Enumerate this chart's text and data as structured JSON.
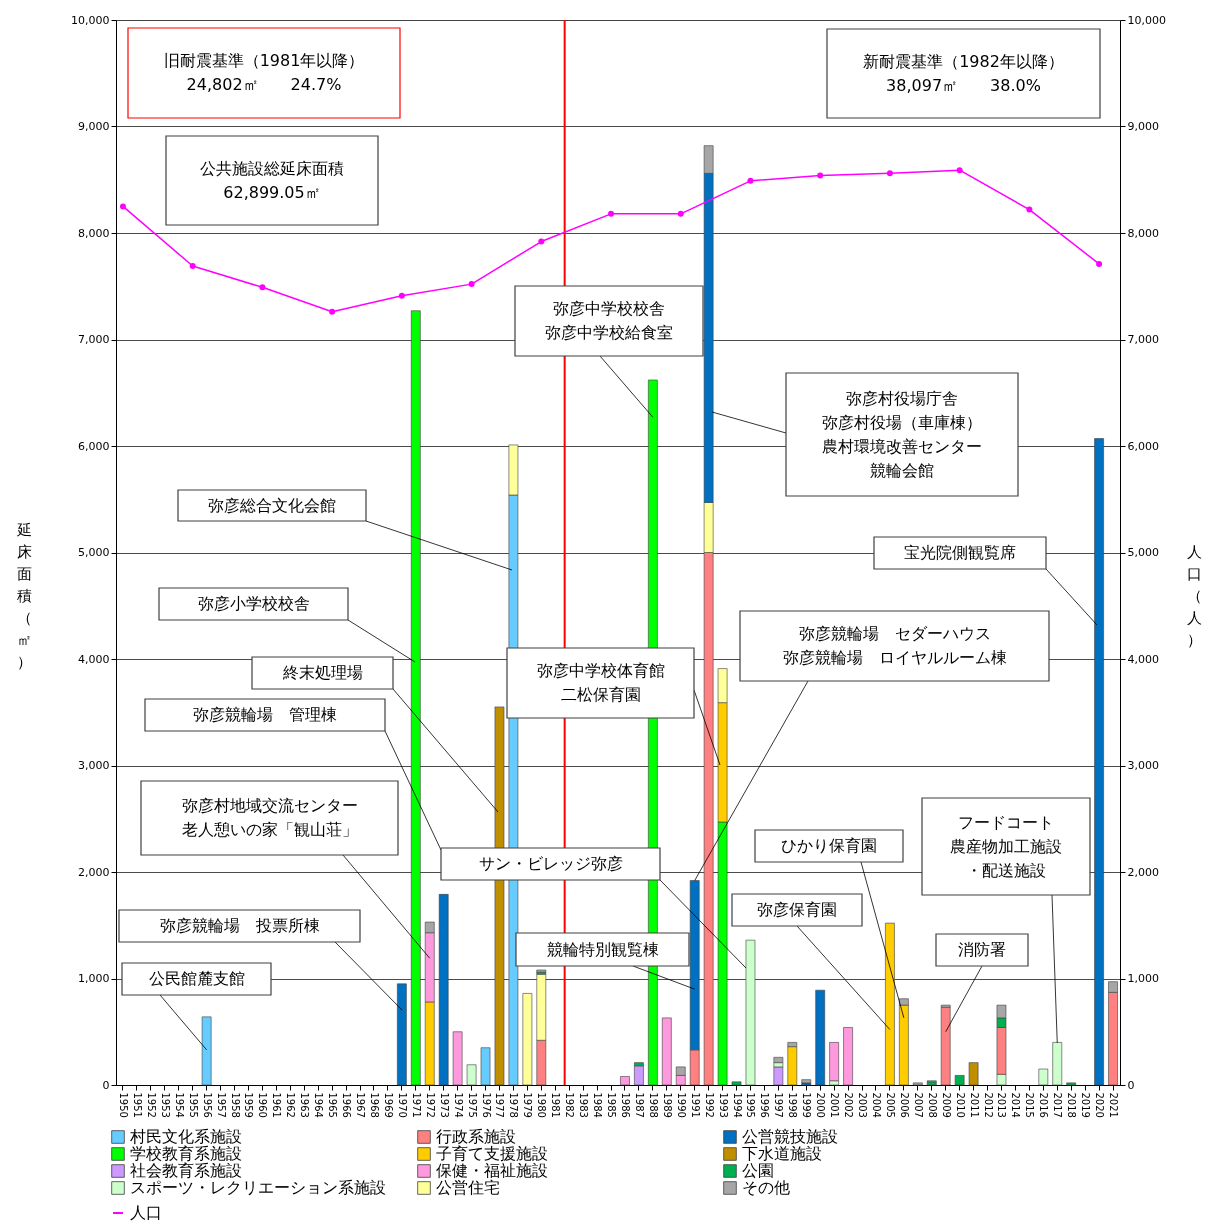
{
  "chart_data": {
    "type": "bar",
    "stacked": true,
    "categories": [
      "1950",
      "1951",
      "1952",
      "1953",
      "1954",
      "1955",
      "1956",
      "1957",
      "1958",
      "1959",
      "1960",
      "1961",
      "1962",
      "1963",
      "1964",
      "1965",
      "1966",
      "1967",
      "1968",
      "1969",
      "1970",
      "1971",
      "1972",
      "1973",
      "1974",
      "1975",
      "1976",
      "1977",
      "1978",
      "1979",
      "1980",
      "1981",
      "1982",
      "1983",
      "1984",
      "1985",
      "1986",
      "1987",
      "1988",
      "1989",
      "1990",
      "1991",
      "1992",
      "1993",
      "1994",
      "1995",
      "1996",
      "1997",
      "1998",
      "1999",
      "2000",
      "2001",
      "2002",
      "2003",
      "2004",
      "2005",
      "2006",
      "2007",
      "2008",
      "2009",
      "2010",
      "2011",
      "2012",
      "2013",
      "2014",
      "2015",
      "2016",
      "2017",
      "2018",
      "2019",
      "2020",
      "2021"
    ],
    "ylabel": "延床面積（㎡）",
    "y2label": "人口（人）",
    "ylim": [
      0,
      10000
    ],
    "yticks": [
      0,
      {
        "value": 1000,
        "label": "1,000"
      },
      {
        "value": 2000,
        "label": "2,000"
      },
      {
        "value": 3000,
        "label": "3,000"
      },
      {
        "value": 4000,
        "label": "4,000"
      },
      {
        "value": 5000,
        "label": "5,000"
      },
      {
        "value": 6000,
        "label": "6,000"
      },
      {
        "value": 7000,
        "label": "7,000"
      },
      {
        "value": 8000,
        "label": "8,000"
      },
      {
        "value": 9000,
        "label": "9,000"
      },
      {
        "value": 10000,
        "label": "10,000"
      }
    ],
    "y2lim": [
      0,
      10000
    ],
    "y2ticks": [
      0,
      {
        "value": 1000,
        "label": "1,000"
      },
      {
        "value": 2000,
        "label": "2,000"
      },
      {
        "value": 3000,
        "label": "3,000"
      },
      {
        "value": 4000,
        "label": "4,000"
      },
      {
        "value": 5000,
        "label": "5,000"
      },
      {
        "value": 6000,
        "label": "6,000"
      },
      {
        "value": 7000,
        "label": "7,000"
      },
      {
        "value": 8000,
        "label": "8,000"
      },
      {
        "value": 9000,
        "label": "9,000"
      },
      {
        "value": 10000,
        "label": "10,000"
      }
    ],
    "grid": "y",
    "legend": "bottom",
    "series": [
      {
        "name": "村民文化系施設",
        "color": "#66ccff",
        "values": [
          null,
          null,
          null,
          null,
          null,
          null,
          640,
          null,
          null,
          null,
          null,
          null,
          null,
          null,
          null,
          null,
          null,
          null,
          null,
          null,
          null,
          null,
          null,
          null,
          null,
          null,
          350,
          null,
          5540,
          null,
          null,
          null,
          null,
          null,
          null,
          null,
          null,
          null,
          null,
          null,
          null,
          null,
          null,
          null,
          null,
          null,
          null,
          null,
          null,
          null,
          null,
          null,
          null,
          null,
          null,
          null,
          null,
          null,
          null,
          null,
          null,
          null,
          null,
          null,
          null,
          null,
          null,
          null,
          null,
          null,
          null,
          null
        ]
      },
      {
        "name": "学校教育系施設",
        "color": "#00ff00",
        "values": [
          null,
          null,
          null,
          null,
          null,
          null,
          null,
          null,
          null,
          null,
          null,
          null,
          null,
          null,
          null,
          null,
          null,
          null,
          null,
          null,
          null,
          7270,
          null,
          null,
          null,
          null,
          null,
          null,
          null,
          null,
          null,
          null,
          null,
          null,
          null,
          null,
          null,
          null,
          6620,
          null,
          null,
          null,
          null,
          2470,
          null,
          null,
          null,
          null,
          null,
          null,
          null,
          null,
          null,
          null,
          null,
          null,
          null,
          null,
          null,
          null,
          null,
          null,
          null,
          null,
          null,
          null,
          null,
          null,
          null,
          null,
          null,
          null
        ]
      },
      {
        "name": "社会教育系施設",
        "color": "#cc99ff",
        "values": [
          null,
          null,
          null,
          null,
          null,
          null,
          null,
          null,
          null,
          null,
          null,
          null,
          null,
          null,
          null,
          null,
          null,
          null,
          null,
          null,
          null,
          null,
          null,
          null,
          null,
          null,
          null,
          null,
          null,
          null,
          null,
          null,
          null,
          null,
          null,
          null,
          null,
          180,
          null,
          null,
          null,
          null,
          null,
          null,
          null,
          null,
          null,
          170,
          null,
          null,
          null,
          null,
          null,
          null,
          null,
          null,
          null,
          null,
          null,
          null,
          null,
          null,
          null,
          null,
          null,
          null,
          null,
          null,
          null,
          null,
          null,
          null
        ]
      },
      {
        "name": "スポーツ・レクリエーション系施設",
        "color": "#ccffcc",
        "values": [
          null,
          null,
          null,
          null,
          null,
          null,
          null,
          null,
          null,
          null,
          null,
          null,
          null,
          null,
          null,
          null,
          null,
          null,
          null,
          null,
          null,
          null,
          null,
          null,
          null,
          190,
          null,
          null,
          null,
          null,
          null,
          null,
          null,
          null,
          null,
          null,
          null,
          null,
          null,
          null,
          null,
          null,
          null,
          null,
          null,
          1360,
          null,
          40,
          null,
          null,
          null,
          40,
          null,
          null,
          null,
          null,
          null,
          null,
          null,
          null,
          null,
          null,
          null,
          100,
          null,
          null,
          150,
          400,
          null,
          null,
          null,
          null
        ]
      },
      {
        "name": "行政系施設",
        "color": "#ff8080",
        "values": [
          null,
          null,
          null,
          null,
          null,
          null,
          null,
          null,
          null,
          null,
          null,
          null,
          null,
          null,
          null,
          null,
          null,
          null,
          null,
          null,
          null,
          null,
          null,
          null,
          null,
          null,
          null,
          null,
          null,
          null,
          420,
          null,
          null,
          null,
          null,
          null,
          null,
          null,
          null,
          null,
          null,
          330,
          5000,
          null,
          null,
          null,
          null,
          null,
          null,
          null,
          null,
          null,
          null,
          null,
          null,
          null,
          null,
          null,
          null,
          730,
          null,
          null,
          null,
          440,
          null,
          null,
          null,
          null,
          null,
          null,
          null,
          870
        ]
      },
      {
        "name": "子育て支援施設",
        "color": "#ffcc00",
        "values": [
          null,
          null,
          null,
          null,
          null,
          null,
          null,
          null,
          null,
          null,
          null,
          null,
          null,
          null,
          null,
          null,
          null,
          null,
          null,
          null,
          null,
          null,
          780,
          null,
          null,
          null,
          null,
          null,
          null,
          null,
          null,
          null,
          null,
          null,
          null,
          null,
          null,
          null,
          null,
          null,
          null,
          null,
          null,
          1120,
          null,
          null,
          null,
          null,
          360,
          null,
          null,
          null,
          null,
          null,
          null,
          1520,
          750,
          null,
          null,
          null,
          null,
          null,
          null,
          null,
          null,
          null,
          null,
          null,
          null,
          null,
          null,
          null
        ]
      },
      {
        "name": "保健・福祉施設",
        "color": "#ff99dd",
        "values": [
          null,
          null,
          null,
          null,
          null,
          null,
          null,
          null,
          null,
          null,
          null,
          null,
          null,
          null,
          null,
          null,
          null,
          null,
          null,
          null,
          null,
          null,
          650,
          null,
          500,
          null,
          null,
          null,
          null,
          null,
          null,
          null,
          null,
          null,
          null,
          null,
          80,
          null,
          null,
          630,
          90,
          null,
          null,
          null,
          null,
          null,
          null,
          null,
          null,
          null,
          null,
          360,
          540,
          null,
          null,
          null,
          null,
          null,
          null,
          null,
          null,
          null,
          null,
          null,
          null,
          null,
          null,
          null,
          null,
          null,
          null,
          null
        ]
      },
      {
        "name": "公営住宅",
        "color": "#ffff99",
        "values": [
          null,
          null,
          null,
          null,
          null,
          null,
          null,
          null,
          null,
          null,
          null,
          null,
          null,
          null,
          null,
          null,
          null,
          null,
          null,
          null,
          null,
          null,
          null,
          null,
          null,
          null,
          null,
          null,
          470,
          860,
          620,
          null,
          null,
          null,
          null,
          null,
          null,
          null,
          null,
          null,
          null,
          null,
          470,
          320,
          null,
          null,
          null,
          null,
          null,
          null,
          null,
          null,
          null,
          null,
          null,
          null,
          null,
          null,
          null,
          null,
          null,
          null,
          null,
          null,
          null,
          null,
          null,
          null,
          null,
          null,
          null,
          null
        ]
      },
      {
        "name": "公営競技施設",
        "color": "#0070c0",
        "values": [
          null,
          null,
          null,
          null,
          null,
          null,
          null,
          null,
          null,
          null,
          null,
          null,
          null,
          null,
          null,
          null,
          null,
          null,
          null,
          null,
          950,
          null,
          null,
          1790,
          null,
          null,
          null,
          null,
          null,
          null,
          null,
          null,
          null,
          null,
          null,
          null,
          null,
          null,
          null,
          null,
          null,
          1590,
          3090,
          null,
          null,
          null,
          null,
          null,
          null,
          20,
          890,
          null,
          null,
          null,
          null,
          null,
          null,
          null,
          null,
          null,
          null,
          null,
          null,
          null,
          null,
          null,
          null,
          null,
          null,
          null,
          6070,
          null
        ]
      },
      {
        "name": "下水道施設",
        "color": "#bf8f00",
        "values": [
          null,
          null,
          null,
          null,
          null,
          null,
          null,
          null,
          null,
          null,
          null,
          null,
          null,
          null,
          null,
          null,
          null,
          null,
          null,
          null,
          null,
          null,
          null,
          null,
          null,
          null,
          null,
          3550,
          null,
          null,
          null,
          null,
          null,
          null,
          null,
          null,
          null,
          null,
          null,
          null,
          null,
          null,
          null,
          null,
          null,
          null,
          null,
          null,
          null,
          null,
          null,
          null,
          null,
          null,
          null,
          null,
          null,
          null,
          null,
          null,
          null,
          210,
          null,
          null,
          null,
          null,
          null,
          null,
          null,
          null,
          null,
          null
        ]
      },
      {
        "name": "公園",
        "color": "#00b050",
        "values": [
          null,
          null,
          null,
          null,
          null,
          null,
          null,
          null,
          null,
          null,
          null,
          null,
          null,
          null,
          null,
          null,
          null,
          null,
          null,
          null,
          null,
          null,
          null,
          null,
          null,
          null,
          null,
          null,
          null,
          null,
          20,
          null,
          null,
          null,
          null,
          null,
          null,
          30,
          null,
          null,
          null,
          null,
          null,
          null,
          30,
          null,
          null,
          null,
          null,
          null,
          null,
          null,
          null,
          null,
          null,
          null,
          null,
          null,
          30,
          null,
          90,
          null,
          null,
          90,
          null,
          null,
          null,
          null,
          20,
          null,
          null,
          null
        ]
      },
      {
        "name": "その他",
        "color": "#a6a6a6",
        "values": [
          null,
          null,
          null,
          null,
          null,
          null,
          null,
          null,
          null,
          null,
          null,
          null,
          null,
          null,
          null,
          null,
          null,
          null,
          null,
          null,
          null,
          null,
          100,
          null,
          null,
          null,
          null,
          null,
          null,
          null,
          20,
          null,
          null,
          null,
          null,
          null,
          null,
          null,
          null,
          null,
          80,
          null,
          260,
          null,
          null,
          null,
          null,
          50,
          40,
          30,
          null,
          null,
          null,
          null,
          null,
          null,
          60,
          20,
          10,
          20,
          null,
          null,
          null,
          120,
          null,
          null,
          null,
          null,
          null,
          null,
          null,
          100
        ]
      },
      {
        "name": "人口",
        "type": "line",
        "axis": "y2",
        "marker": "circle",
        "color": "#ff00ff",
        "values": [
          8250,
          null,
          null,
          null,
          null,
          7690,
          null,
          null,
          null,
          null,
          7490,
          null,
          null,
          null,
          null,
          7260,
          null,
          null,
          null,
          null,
          7410,
          null,
          null,
          null,
          null,
          7520,
          null,
          null,
          null,
          null,
          7920,
          null,
          null,
          null,
          null,
          8180,
          null,
          null,
          null,
          null,
          8180,
          null,
          null,
          null,
          null,
          8490,
          null,
          null,
          null,
          null,
          8540,
          null,
          null,
          null,
          null,
          8560,
          null,
          null,
          null,
          null,
          8590,
          null,
          null,
          null,
          null,
          8220,
          null,
          null,
          null,
          null,
          7710,
          null
        ]
      }
    ],
    "ref_lines": [
      {
        "axis": "x",
        "value": "1982",
        "color": "#ff0000"
      }
    ],
    "annotations": [
      "旧耐震基準（1981年以降）",
      "24,802㎡　　24.7%",
      "新耐震基準（1982年以降）",
      "38,097㎡　　38.0%",
      "公共施設総延床面積",
      "62,899.05㎡",
      "弥彦中学校校舎",
      {
        "text": "弥彦中学校給食室",
        "x": "1988",
        "y": 6270
      },
      "弥彦村役場庁舎",
      "弥彦村役場（車庫棟）",
      "農村環境改善センター",
      "競輪会館",
      "弥彦総合文化会館",
      "宝光院側観覧席",
      "弥彦小学校校舎",
      "弥彦競輪場　セダーハウス",
      {
        "text": "弥彦競輪場　ロイヤルルーム棟",
        "x": "1991",
        "y": 1920
      },
      "終末処理場",
      "弥彦中学校体育館",
      "二松保育園",
      "弥彦競輪場　管理棟",
      "弥彦村地域交流センター",
      {
        "text": "老人憩いの家「観山荘」",
        "x": "1972",
        "y": 1190
      },
      "サン・ビレッジ弥彦",
      {
        "text": "ひかり保育園",
        "x": "2006",
        "y": 630
      },
      "フードコート",
      "農産物加工施設",
      {
        "text": "・配送施設",
        "x": "2017",
        "y": 395
      },
      {
        "text": "弥彦保育園",
        "x": "2005",
        "y": 520
      },
      {
        "text": "消防署",
        "x": "2009",
        "y": 500
      },
      {
        "text": "競輪特別観覧棟",
        "x": "1991",
        "y": 900
      },
      "弥彦競輪場　投票所棟",
      {
        "text": "公民館麓支館",
        "x": "1956",
        "y": 330
      }
    ]
  }
}
